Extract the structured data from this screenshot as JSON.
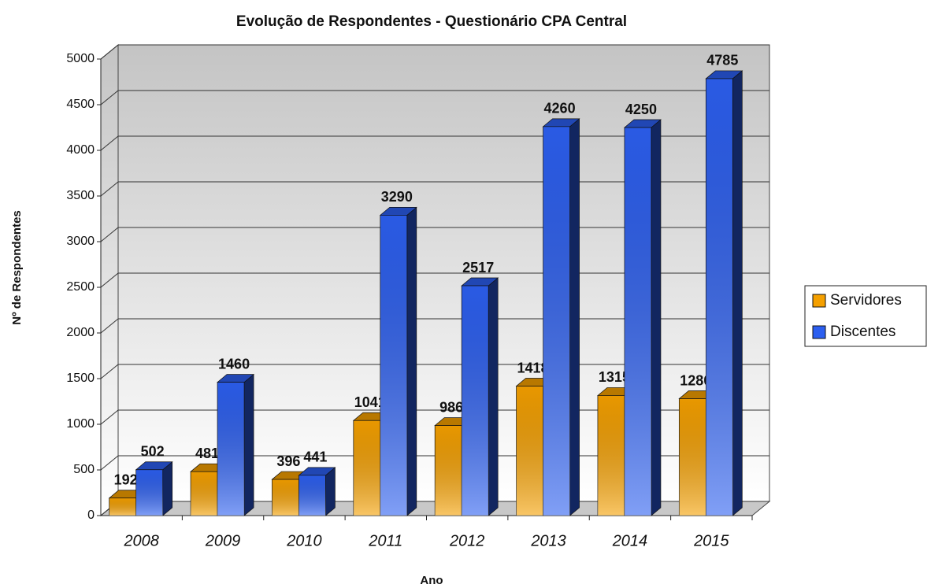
{
  "chart_data": {
    "type": "bar3d",
    "title": "Evolução de Respondentes - Questionário CPA Central",
    "xlabel": "Ano",
    "ylabel": "Nº de Respondentes",
    "categories": [
      "2008",
      "2009",
      "2010",
      "2011",
      "2012",
      "2013",
      "2014",
      "2015"
    ],
    "series": [
      {
        "name": "Servidores",
        "color": "#f5a000",
        "values": [
          192,
          481,
          396,
          1041,
          986,
          1418,
          1315,
          1280
        ]
      },
      {
        "name": "Discentes",
        "color": "#2c5ff0",
        "values": [
          502,
          1460,
          441,
          3290,
          2517,
          4260,
          4250,
          4785
        ]
      }
    ],
    "ylim": [
      0,
      5000
    ],
    "yticks": [
      0,
      500,
      1000,
      1500,
      2000,
      2500,
      3000,
      3500,
      4000,
      4500,
      5000
    ],
    "grid": true,
    "legend": "right"
  }
}
